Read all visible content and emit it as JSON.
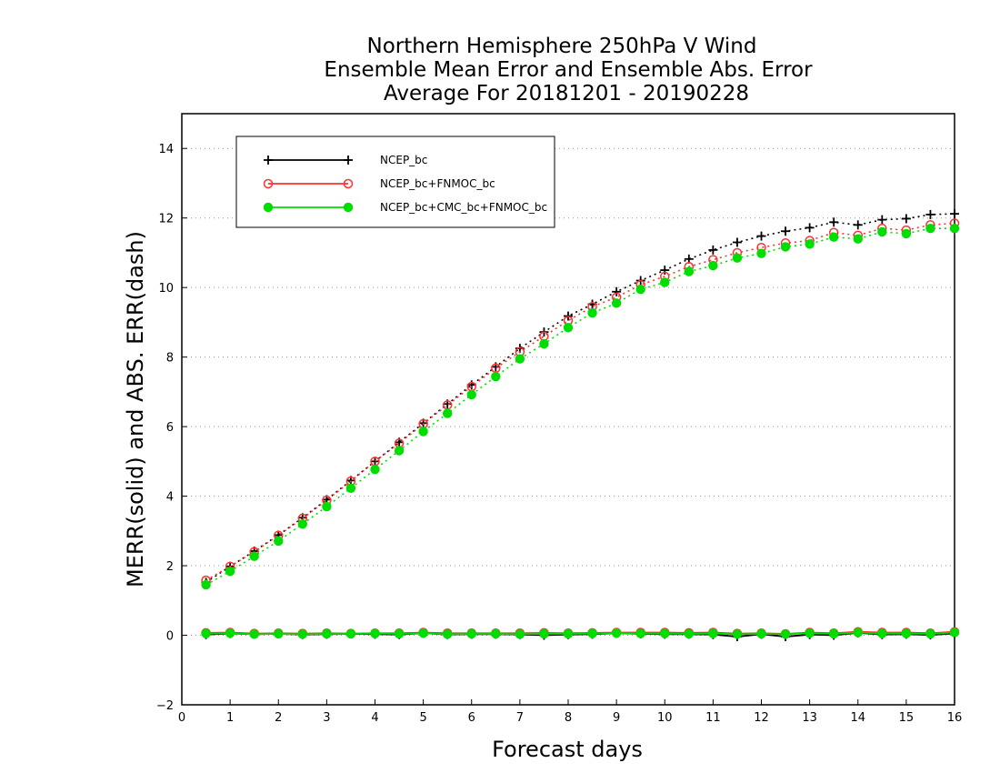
{
  "chart_data": {
    "type": "line",
    "title": [
      "Northern Hemisphere 250hPa V Wind",
      "Ensemble Mean Error and Ensemble Abs. Error",
      "Average For 20181201 - 20190228"
    ],
    "xlabel": "Forecast days",
    "ylabel": "MERR(solid) and ABS. ERR(dash)",
    "xlim": [
      0,
      16
    ],
    "ylim": [
      -2,
      15
    ],
    "xticks": [
      0,
      1,
      2,
      3,
      4,
      5,
      6,
      7,
      8,
      9,
      10,
      11,
      12,
      13,
      14,
      15,
      16
    ],
    "yticks": [
      -2,
      0,
      2,
      4,
      6,
      8,
      10,
      12,
      14
    ],
    "grid": true,
    "legend_position": "top-left",
    "x": [
      0.5,
      1,
      1.5,
      2,
      2.5,
      3,
      3.5,
      4,
      4.5,
      5,
      5.5,
      6,
      6.5,
      7,
      7.5,
      8,
      8.5,
      9,
      9.5,
      10,
      10.5,
      11,
      11.5,
      12,
      12.5,
      13,
      13.5,
      14,
      14.5,
      15,
      15.5,
      16
    ],
    "series": [
      {
        "name": "NCEP_bc",
        "color": "#000000",
        "marker": "plus",
        "abs_err": [
          1.52,
          1.98,
          2.42,
          2.88,
          3.38,
          3.9,
          4.45,
          5.0,
          5.55,
          6.1,
          6.65,
          7.2,
          7.72,
          8.25,
          8.72,
          9.18,
          9.52,
          9.88,
          10.2,
          10.5,
          10.82,
          11.08,
          11.3,
          11.48,
          11.62,
          11.72,
          11.88,
          11.8,
          11.95,
          11.98,
          12.1,
          12.12
        ],
        "mean_err": [
          0.02,
          0.05,
          0.03,
          0.04,
          0.02,
          0.03,
          0.04,
          0.03,
          0.02,
          0.06,
          0.02,
          0.03,
          0.03,
          0.02,
          0.0,
          0.02,
          0.03,
          0.06,
          0.04,
          0.03,
          0.03,
          0.02,
          -0.04,
          0.03,
          -0.04,
          0.02,
          0.0,
          0.07,
          0.02,
          0.03,
          0.01,
          0.05
        ]
      },
      {
        "name": "NCEP_bc+FNMOC_bc",
        "color": "#ff3030",
        "marker": "open-circle",
        "abs_err": [
          1.58,
          1.98,
          2.4,
          2.87,
          3.36,
          3.88,
          4.43,
          5.0,
          5.52,
          6.08,
          6.62,
          7.15,
          7.68,
          8.15,
          8.6,
          9.05,
          9.45,
          9.72,
          10.08,
          10.32,
          10.6,
          10.8,
          11.0,
          11.15,
          11.28,
          11.35,
          11.58,
          11.5,
          11.7,
          11.65,
          11.8,
          11.85
        ],
        "mean_err": [
          0.07,
          0.08,
          0.05,
          0.06,
          0.05,
          0.06,
          0.05,
          0.06,
          0.06,
          0.08,
          0.06,
          0.06,
          0.06,
          0.06,
          0.07,
          0.06,
          0.07,
          0.08,
          0.08,
          0.08,
          0.07,
          0.08,
          0.05,
          0.06,
          0.04,
          0.08,
          0.06,
          0.1,
          0.08,
          0.08,
          0.06,
          0.1
        ]
      },
      {
        "name": "NCEP_bc+CMC_bc+FNMOC_bc",
        "color": "#00dd00",
        "marker": "filled-circle",
        "abs_err": [
          1.45,
          1.84,
          2.27,
          2.71,
          3.2,
          3.7,
          4.23,
          4.77,
          5.31,
          5.86,
          6.38,
          6.92,
          7.44,
          7.95,
          8.38,
          8.85,
          9.27,
          9.55,
          9.95,
          10.15,
          10.46,
          10.63,
          10.85,
          10.98,
          11.17,
          11.25,
          11.45,
          11.4,
          11.6,
          11.55,
          11.7,
          11.7
        ],
        "mean_err": [
          0.05,
          0.06,
          0.03,
          0.04,
          0.03,
          0.04,
          0.04,
          0.05,
          0.04,
          0.06,
          0.03,
          0.04,
          0.04,
          0.03,
          0.04,
          0.04,
          0.05,
          0.06,
          0.05,
          0.05,
          0.04,
          0.05,
          0.03,
          0.04,
          0.03,
          0.06,
          0.04,
          0.08,
          0.05,
          0.05,
          0.04,
          0.08
        ]
      }
    ]
  }
}
